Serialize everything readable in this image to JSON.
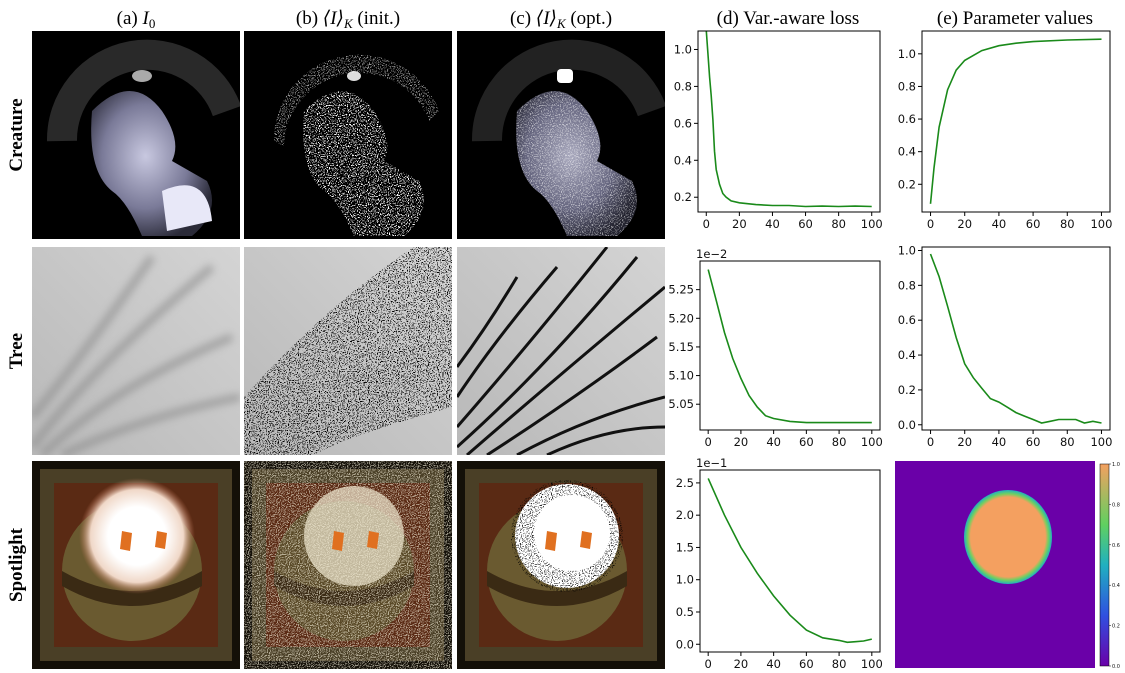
{
  "columns": [
    {
      "label": "(a)",
      "math": "I",
      "sub": "0"
    },
    {
      "label": "(b)",
      "math": "⟨I⟩",
      "sub": "K",
      "note": "(init.)"
    },
    {
      "label": "(c)",
      "math": "⟨I⟩",
      "sub": "K",
      "note": "(opt.)"
    },
    {
      "label": "(d) Var.-aware loss"
    },
    {
      "label": "(e) Parameter values"
    }
  ],
  "rows": [
    "Creature",
    "Tree",
    "Spotlight"
  ],
  "chart_data": [
    {
      "type": "line",
      "color": "#1a8a1a",
      "x": [
        0,
        1,
        2,
        3,
        4,
        5,
        6,
        8,
        10,
        12,
        15,
        20,
        25,
        30,
        40,
        50,
        60,
        70,
        80,
        90,
        100
      ],
      "values": [
        1.1,
        0.98,
        0.85,
        0.75,
        0.62,
        0.45,
        0.35,
        0.27,
        0.22,
        0.2,
        0.18,
        0.17,
        0.165,
        0.16,
        0.155,
        0.155,
        0.15,
        0.152,
        0.15,
        0.152,
        0.15
      ],
      "xlim": [
        -5,
        105
      ],
      "xticks": [
        0,
        20,
        40,
        60,
        80,
        100
      ],
      "ylim": [
        0.12,
        1.1
      ],
      "yticks": [
        0.2,
        0.4,
        0.6,
        0.8,
        {
          "value": 1,
          "label": "1.0"
        }
      ]
    },
    {
      "type": "line",
      "color": "#1a8a1a",
      "x": [
        0,
        2,
        5,
        10,
        15,
        20,
        30,
        40,
        50,
        60,
        80,
        100
      ],
      "values": [
        0.08,
        0.3,
        0.55,
        0.78,
        0.9,
        0.96,
        1.02,
        1.05,
        1.065,
        1.075,
        1.085,
        1.09
      ],
      "xlim": [
        -5,
        105
      ],
      "xticks": [
        0,
        20,
        40,
        60,
        80,
        100
      ],
      "ylim": [
        0.03,
        1.14
      ],
      "yticks": [
        0.2,
        0.4,
        0.6,
        0.8,
        {
          "value": 1,
          "label": "1.0"
        }
      ]
    },
    {
      "type": "line",
      "color": "#1a8a1a",
      "offset_label": "1e−2",
      "x": [
        0,
        5,
        10,
        15,
        20,
        25,
        30,
        35,
        40,
        50,
        60,
        80,
        100
      ],
      "values": [
        5.285,
        5.23,
        5.175,
        5.13,
        5.095,
        5.065,
        5.045,
        5.03,
        5.025,
        5.02,
        5.018,
        5.018,
        5.018
      ],
      "xlim": [
        -5,
        105
      ],
      "xticks": [
        0,
        20,
        40,
        60,
        80,
        100
      ],
      "ylim": [
        5.005,
        5.3
      ],
      "yticks": [
        5.05,
        {
          "value": 5.1,
          "label": "5.10"
        },
        5.15,
        {
          "value": 5.2,
          "label": "5.20"
        },
        5.25
      ]
    },
    {
      "type": "line",
      "color": "#1a8a1a",
      "x": [
        0,
        5,
        10,
        15,
        20,
        25,
        30,
        35,
        40,
        45,
        50,
        55,
        60,
        65,
        70,
        75,
        80,
        85,
        90,
        95,
        100
      ],
      "values": [
        0.98,
        0.85,
        0.68,
        0.5,
        0.35,
        0.27,
        0.21,
        0.15,
        0.13,
        0.1,
        0.07,
        0.05,
        0.03,
        0.01,
        0.02,
        0.03,
        0.03,
        0.03,
        0.01,
        0.02,
        0.01
      ],
      "xlim": [
        -5,
        105
      ],
      "xticks": [
        0,
        20,
        40,
        60,
        80,
        100
      ],
      "ylim": [
        -0.03,
        1.02
      ],
      "yticks": [
        {
          "value": 0,
          "label": "0.0"
        },
        0.2,
        0.4,
        0.6,
        0.8,
        {
          "value": 1,
          "label": "1.0"
        }
      ]
    },
    {
      "type": "line",
      "color": "#1a8a1a",
      "offset_label": "1e−1",
      "x": [
        0,
        10,
        20,
        30,
        40,
        50,
        60,
        70,
        80,
        85,
        90,
        95,
        100
      ],
      "values": [
        2.57,
        2.0,
        1.5,
        1.1,
        0.75,
        0.45,
        0.22,
        0.1,
        0.06,
        0.03,
        0.04,
        0.05,
        0.08
      ],
      "xlim": [
        -5,
        105
      ],
      "xticks": [
        0,
        20,
        40,
        60,
        80,
        100
      ],
      "ylim": [
        -0.12,
        2.7
      ],
      "yticks": [
        {
          "value": 0,
          "label": "0.0"
        },
        0.5,
        {
          "value": 1,
          "label": "1.0"
        },
        1.5,
        {
          "value": 2,
          "label": "2.0"
        },
        2.5
      ]
    },
    {
      "type": "heatmap",
      "clim": [
        0,
        1
      ],
      "cticks": [
        {
          "value": 0,
          "label": "0.0"
        },
        0.2,
        0.4,
        0.6,
        0.8,
        {
          "value": 1,
          "label": "1.0"
        }
      ]
    }
  ]
}
